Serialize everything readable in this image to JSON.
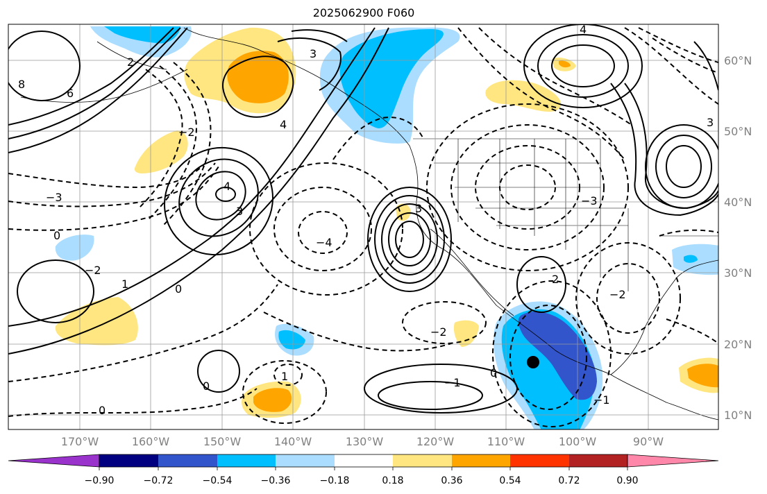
{
  "title": "2025062900 F060",
  "lon_labels": [
    "170°W",
    "160°W",
    "150°W",
    "140°W",
    "130°W",
    "120°W",
    "110°W",
    "100°W",
    "90°W"
  ],
  "lat_labels": [
    "60°N",
    "50°N",
    "40°N",
    "30°N",
    "20°N",
    "10°N"
  ],
  "colorbar": {
    "colors": [
      "#9933cc",
      "#000080",
      "#3355cc",
      "#00bfff",
      "#aaddff",
      "#ffffff",
      "#ffe680",
      "#ffa500",
      "#ff3300",
      "#b22222",
      "#ff88aa"
    ],
    "tick_labels": [
      "−0.90",
      "−0.72",
      "−0.54",
      "−0.36",
      "−0.18",
      "0.18",
      "0.36",
      "0.54",
      "0.72",
      "0.90"
    ]
  },
  "contour_labels": [
    "8",
    "6",
    "4",
    "3",
    "2",
    "1",
    "0",
    "−1",
    "−2",
    "−3",
    "−4"
  ],
  "marker": "storm-center"
}
